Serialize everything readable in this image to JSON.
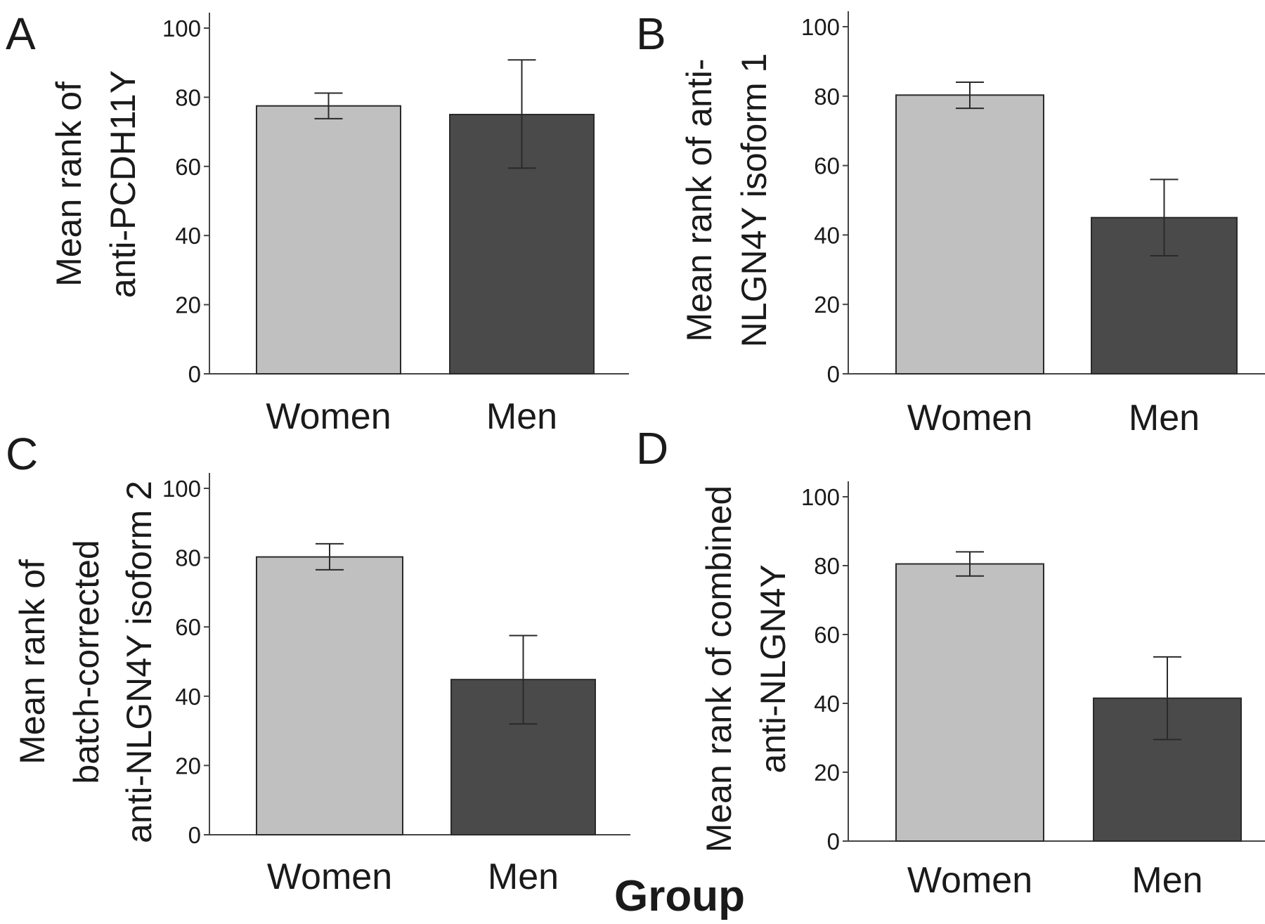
{
  "figure": {
    "shared_xlabel": "Group",
    "colors": {
      "women": "#c0c0c0",
      "men": "#4a4a4a",
      "axis": "#444444",
      "text": "#1a1a1a"
    }
  },
  "chart_data": [
    {
      "panel": "A",
      "type": "bar",
      "categories": [
        "Women",
        "Men"
      ],
      "values": [
        77.5,
        75
      ],
      "error_bars": [
        [
          73.8,
          81.2
        ],
        [
          59.5,
          90.8
        ]
      ],
      "ylabel_lines": [
        "Mean rank of",
        "anti-PCDH11Y"
      ],
      "yticks": [
        0,
        20,
        40,
        60,
        80,
        100
      ],
      "ylim": [
        0,
        100
      ],
      "grid": false
    },
    {
      "panel": "B",
      "type": "bar",
      "categories": [
        "Women",
        "Men"
      ],
      "values": [
        80.3,
        45
      ],
      "error_bars": [
        [
          76.5,
          84
        ],
        [
          34,
          56
        ]
      ],
      "ylabel_lines": [
        "Mean rank of anti-",
        "NLGN4Y isoform 1"
      ],
      "yticks": [
        0,
        20,
        40,
        60,
        80,
        100
      ],
      "ylim": [
        0,
        100
      ],
      "grid": false
    },
    {
      "panel": "C",
      "type": "bar",
      "categories": [
        "Women",
        "Men"
      ],
      "values": [
        80.2,
        44.8
      ],
      "error_bars": [
        [
          76.5,
          84
        ],
        [
          32,
          57.5
        ]
      ],
      "ylabel_lines": [
        "Mean rank of",
        "batch-corrected",
        "anti-NLGN4Y isoform 2"
      ],
      "yticks": [
        0,
        20,
        40,
        60,
        80,
        100
      ],
      "ylim": [
        0,
        100
      ],
      "grid": false
    },
    {
      "panel": "D",
      "type": "bar",
      "categories": [
        "Women",
        "Men"
      ],
      "values": [
        80.5,
        41.5
      ],
      "error_bars": [
        [
          77,
          84
        ],
        [
          29.5,
          53.5
        ]
      ],
      "ylabel_lines": [
        "Mean rank of combined",
        "anti-NLGN4Y"
      ],
      "yticks": [
        0,
        20,
        40,
        60,
        80,
        100
      ],
      "ylim": [
        0,
        100
      ],
      "grid": false
    }
  ]
}
